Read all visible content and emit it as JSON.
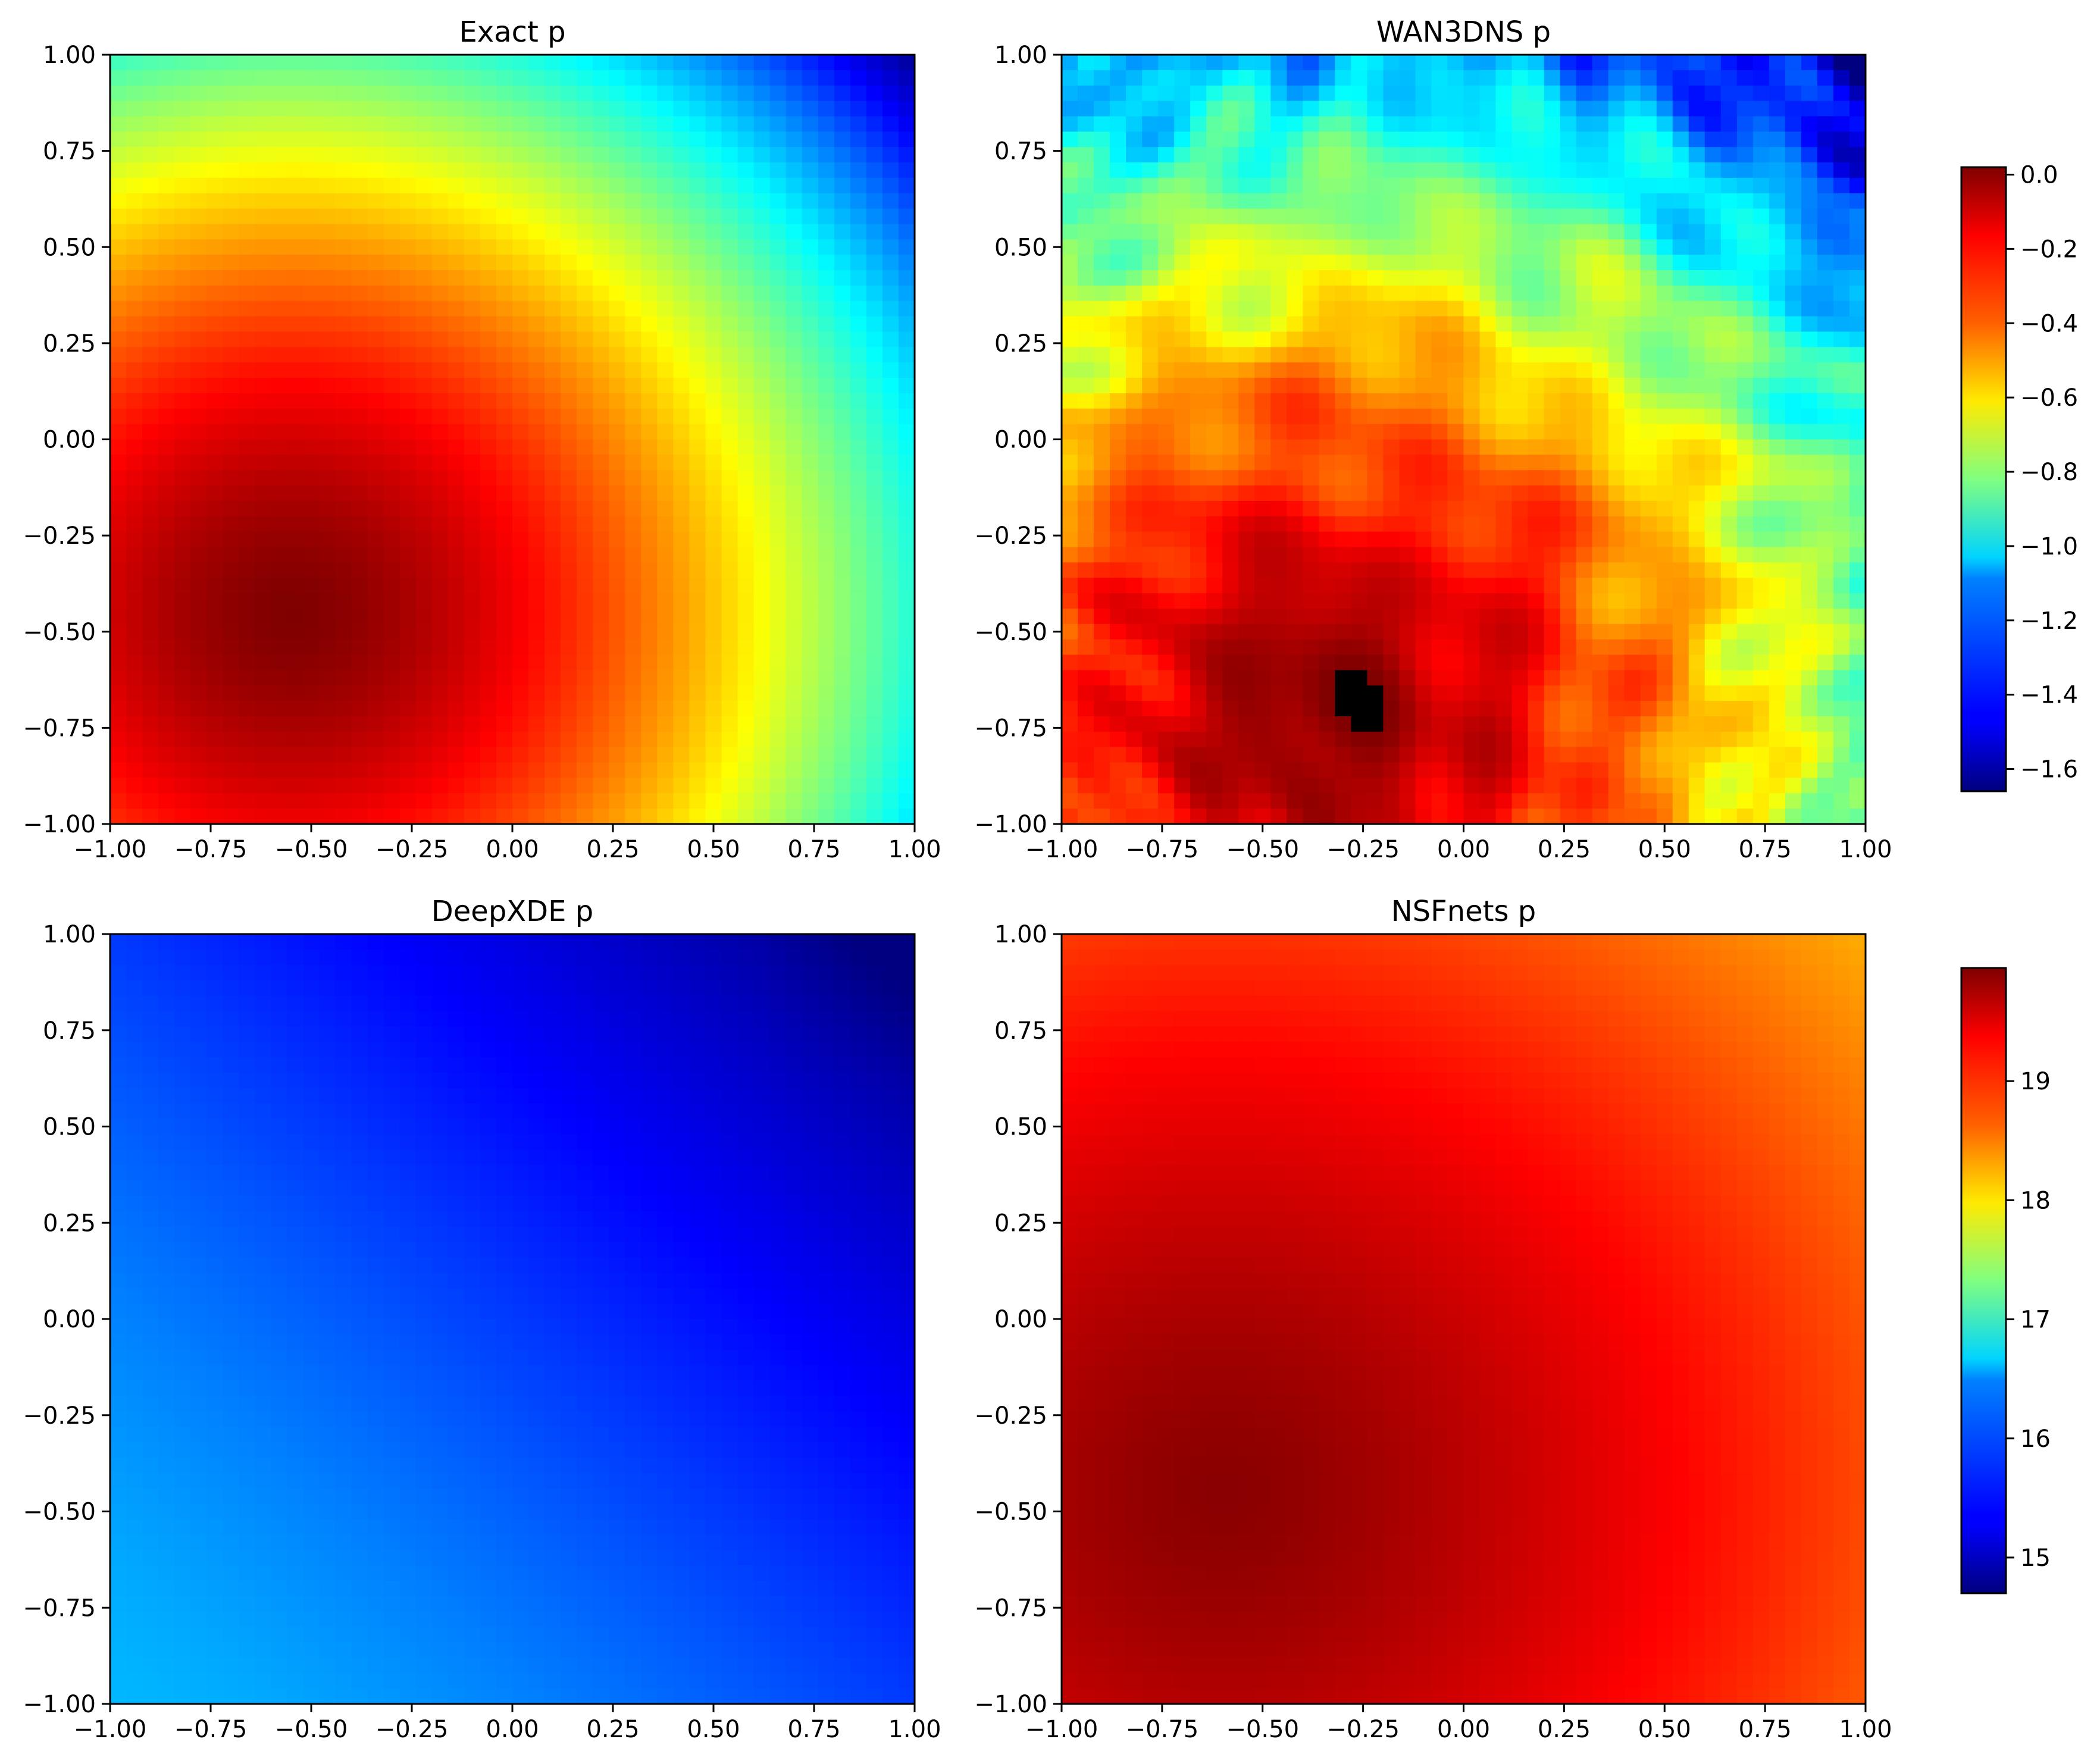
{
  "chart_data": [
    {
      "type": "heatmap",
      "title": "Exact p",
      "colormap": "jet",
      "xlim": [
        -1.0,
        1.0
      ],
      "ylim": [
        -1.0,
        1.0
      ],
      "xticks": [
        "−1.00",
        "−0.75",
        "−0.50",
        "−0.25",
        "0.00",
        "0.25",
        "0.50",
        "0.75",
        "1.00"
      ],
      "yticks": [
        "1.00",
        "0.75",
        "0.50",
        "0.25",
        "0.00",
        "−0.25",
        "−0.50",
        "−0.75",
        "−1.00"
      ],
      "field": {
        "shape": "radial",
        "center": [
          -0.55,
          -0.45
        ],
        "value_at_center": 0.0,
        "value_at_top_right": -1.66,
        "min_value_region": "top-right corner",
        "max_value_region": "lower-left"
      },
      "colorbar_shared_with": "WAN3DNS p"
    },
    {
      "type": "heatmap",
      "title": "WAN3DNS p",
      "colormap": "jet",
      "xlim": [
        -1.0,
        1.0
      ],
      "ylim": [
        -1.0,
        1.0
      ],
      "xticks": [
        "−1.00",
        "−0.75",
        "−0.50",
        "−0.25",
        "0.00",
        "0.25",
        "0.50",
        "0.75",
        "1.00"
      ],
      "yticks": [
        "1.00",
        "0.75",
        "0.50",
        "0.25",
        "0.00",
        "−0.25",
        "−0.50",
        "−0.75",
        "−1.00"
      ],
      "field": {
        "shape": "radial-noisy",
        "center": [
          -0.35,
          -0.7
        ],
        "value_at_center": 0.0,
        "value_at_top_right": -1.6,
        "min_value_region": "top-right corner",
        "max_value_region": "lower-left"
      },
      "colorbar": {
        "ticks": [
          "0.0",
          "−0.2",
          "−0.4",
          "−0.6",
          "−0.8",
          "−1.0",
          "−1.2",
          "−1.4",
          "−1.6"
        ],
        "tick_values": [
          0.0,
          -0.2,
          -0.4,
          -0.6,
          -0.8,
          -1.0,
          -1.2,
          -1.4,
          -1.6
        ],
        "range": [
          -1.66,
          0.02
        ]
      }
    },
    {
      "type": "heatmap",
      "title": "DeepXDE p",
      "colormap": "jet",
      "xlim": [
        -1.0,
        1.0
      ],
      "ylim": [
        -1.0,
        1.0
      ],
      "xticks": [
        "−1.00",
        "−0.75",
        "−0.50",
        "−0.25",
        "0.00",
        "0.25",
        "0.50",
        "0.75",
        "1.00"
      ],
      "yticks": [
        "1.00",
        "0.75",
        "0.50",
        "0.25",
        "0.00",
        "−0.25",
        "−0.50",
        "−0.75",
        "−1.00"
      ],
      "field": {
        "shape": "linear-gradient",
        "value_at_bottom_left": 16.3,
        "value_at_top_right": 14.7,
        "min_value_region": "top-right corner",
        "max_value_region": "lower-left"
      },
      "colorbar_shared_with": "NSFnets p"
    },
    {
      "type": "heatmap",
      "title": "NSFnets p",
      "colormap": "jet",
      "xlim": [
        -1.0,
        1.0
      ],
      "ylim": [
        -1.0,
        1.0
      ],
      "xticks": [
        "−1.00",
        "−0.75",
        "−0.50",
        "−0.25",
        "0.00",
        "0.25",
        "0.50",
        "0.75",
        "1.00"
      ],
      "yticks": [
        "1.00",
        "0.75",
        "0.50",
        "0.25",
        "0.00",
        "−0.25",
        "−0.50",
        "−0.75",
        "−1.00"
      ],
      "field": {
        "shape": "radial",
        "center": [
          -0.6,
          -0.45
        ],
        "value_at_center": 19.9,
        "value_at_top_right": 18.4,
        "min_value_region": "top-right corner",
        "max_value_region": "lower-left"
      },
      "colorbar": {
        "ticks": [
          "19",
          "18",
          "17",
          "16",
          "15"
        ],
        "tick_values": [
          19,
          18,
          17,
          16,
          15
        ],
        "range": [
          14.7,
          19.95
        ]
      }
    }
  ]
}
